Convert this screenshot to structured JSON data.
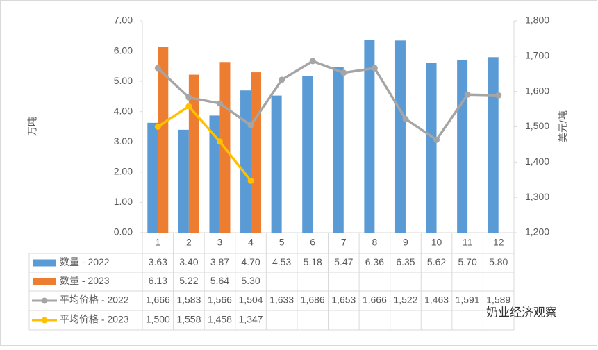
{
  "chart_data": {
    "type": "bar",
    "categories": [
      "1",
      "2",
      "3",
      "4",
      "5",
      "6",
      "7",
      "8",
      "9",
      "10",
      "11",
      "12"
    ],
    "series": [
      {
        "name": "数量 - 2022",
        "type": "bar",
        "color": "#5b9bd5",
        "values": [
          3.63,
          3.4,
          3.87,
          4.7,
          4.53,
          5.18,
          5.47,
          6.36,
          6.35,
          5.62,
          5.7,
          5.8
        ],
        "value_labels": [
          "3.63",
          "3.40",
          "3.87",
          "4.70",
          "4.53",
          "5.18",
          "5.47",
          "6.36",
          "6.35",
          "5.62",
          "5.70",
          "5.80"
        ]
      },
      {
        "name": "数量 - 2023",
        "type": "bar",
        "color": "#ed7d31",
        "values": [
          6.13,
          5.22,
          5.64,
          5.3,
          null,
          null,
          null,
          null,
          null,
          null,
          null,
          null
        ],
        "value_labels": [
          "6.13",
          "5.22",
          "5.64",
          "5.30",
          null,
          null,
          null,
          null,
          null,
          null,
          null,
          null
        ]
      },
      {
        "name": "平均价格 - 2022",
        "type": "line",
        "axis": "y2",
        "color": "#a5a5a5",
        "values": [
          1666,
          1583,
          1566,
          1504,
          1633,
          1686,
          1653,
          1666,
          1522,
          1463,
          1591,
          1589
        ],
        "value_labels": [
          "1,666",
          "1,583",
          "1,566",
          "1,504",
          "1,633",
          "1,686",
          "1,653",
          "1,666",
          "1,522",
          "1,463",
          "1,591",
          "1,589"
        ]
      },
      {
        "name": "平均价格 - 2023",
        "type": "line",
        "axis": "y2",
        "color": "#ffc000",
        "values": [
          1500,
          1558,
          1458,
          1347,
          null,
          null,
          null,
          null,
          null,
          null,
          null,
          null
        ],
        "value_labels": [
          "1,500",
          "1,558",
          "1,458",
          "1,347",
          null,
          null,
          null,
          null,
          null,
          null,
          null,
          null
        ]
      }
    ],
    "ylabel": "万吨",
    "y2label": "美元/吨",
    "ylim": [
      0,
      7
    ],
    "yticks": [
      {
        "value": 0,
        "label": "0.00"
      },
      {
        "value": 1,
        "label": "1.00"
      },
      {
        "value": 2,
        "label": "2.00"
      },
      {
        "value": 3,
        "label": "3.00"
      },
      {
        "value": 4,
        "label": "4.00"
      },
      {
        "value": 5,
        "label": "5.00"
      },
      {
        "value": 6,
        "label": "6.00"
      },
      {
        "value": 7,
        "label": "7.00"
      }
    ],
    "y2lim": [
      1200,
      1800
    ],
    "y2ticks": [
      {
        "value": 1200,
        "label": "1,200"
      },
      {
        "value": 1300,
        "label": "1,300"
      },
      {
        "value": 1400,
        "label": "1,400"
      },
      {
        "value": 1500,
        "label": "1,500"
      },
      {
        "value": 1600,
        "label": "1,600"
      },
      {
        "value": 1700,
        "label": "1,700"
      },
      {
        "value": 1800,
        "label": "1,800"
      }
    ],
    "watermark": "奶业经济观察"
  }
}
